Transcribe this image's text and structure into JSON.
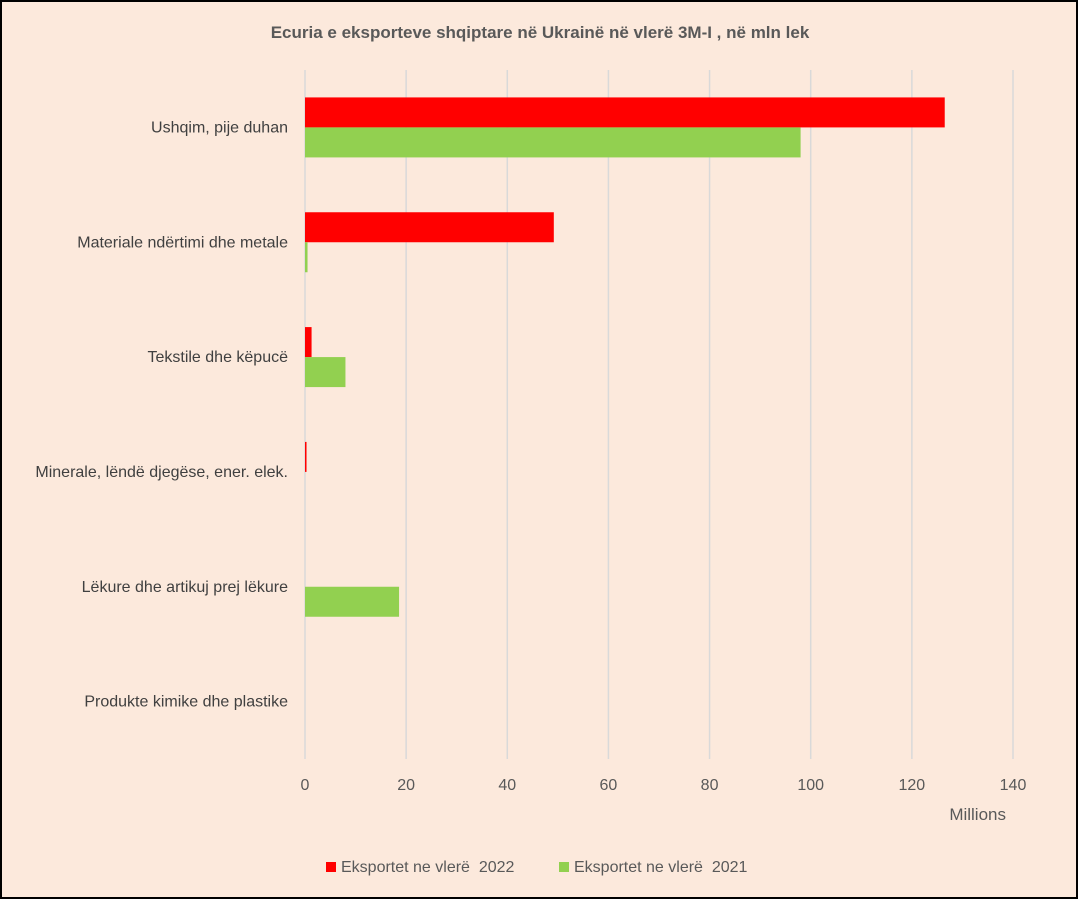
{
  "chart_data": {
    "type": "bar",
    "orientation": "horizontal",
    "title": "Ecuria e eksporteve shqiptare në Ukrainë në vlerë 3M-I , në mln lek",
    "categories": [
      "Ushqim, pije duhan",
      "Materiale ndërtimi dhe metale",
      "Tekstile dhe këpucë",
      "Minerale, lëndë djegëse, ener. elek.",
      "Lëkure dhe artikuj prej lëkure",
      "Produkte kimike dhe plastike"
    ],
    "series": [
      {
        "name": "Eksportet ne vlerë  2022",
        "color": "#ff0000",
        "values": [
          126.5,
          49.2,
          1.3,
          0.3,
          0,
          0
        ]
      },
      {
        "name": "Eksportet ne vlerë  2021",
        "color": "#92d050",
        "values": [
          98.0,
          0.5,
          8.0,
          0,
          18.6,
          0
        ]
      }
    ],
    "xlim": [
      0,
      140
    ],
    "xticks": [
      0,
      20,
      40,
      60,
      80,
      100,
      120,
      140
    ],
    "xtick_labels": [
      "0",
      "20",
      "40",
      "60",
      "80",
      "100",
      "120",
      "140"
    ],
    "xlabel": "Millions",
    "ylabel": "",
    "grid": true,
    "legend_position": "bottom"
  }
}
